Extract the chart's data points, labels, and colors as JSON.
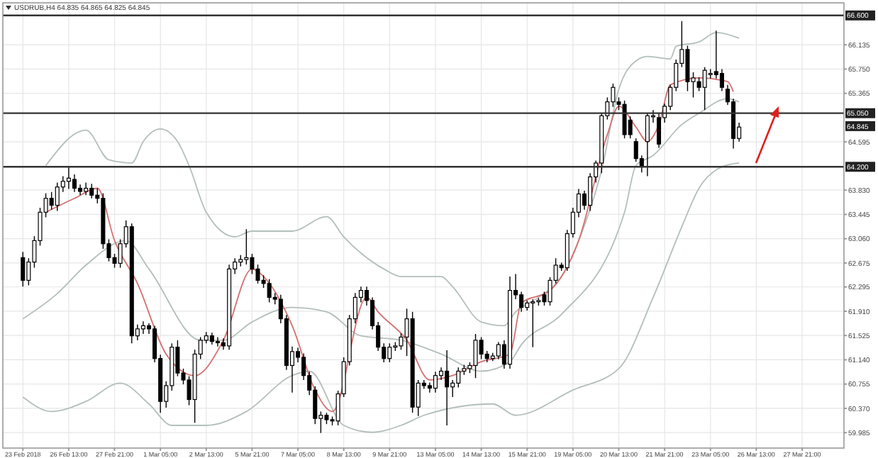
{
  "chart_data": {
    "type": "candlestick",
    "title": "USDRUB,H4 64.835 64.865 64.825 64.845",
    "categories": [
      "23 Feb 2018",
      null,
      null,
      null,
      null,
      null,
      null,
      null,
      "26 Feb 13:00",
      null,
      null,
      null,
      null,
      null,
      null,
      null,
      "27 Feb 21:00",
      null,
      null,
      null,
      null,
      null,
      null,
      null,
      "1 Mar 05:00",
      null,
      null,
      null,
      null,
      null,
      null,
      null,
      "2 Mar 13:00",
      null,
      null,
      null,
      null,
      null,
      null,
      null,
      "5 Mar 21:00",
      null,
      null,
      null,
      null,
      null,
      null,
      null,
      "7 Mar 05:00",
      null,
      null,
      null,
      null,
      null,
      null,
      null,
      "8 Mar 13:00",
      null,
      null,
      null,
      null,
      null,
      null,
      null,
      "9 Mar 21:00",
      null,
      null,
      null,
      null,
      null,
      null,
      null,
      "13 Mar 05:00",
      null,
      null,
      null,
      null,
      null,
      null,
      null,
      "14 Mar 13:00",
      null,
      null,
      null,
      null,
      null,
      null,
      null,
      "15 Mar 21:00",
      null,
      null,
      null,
      null,
      null,
      null,
      null,
      "19 Mar 05:00",
      null,
      null,
      null,
      null,
      null,
      null,
      null,
      "20 Mar 13:00",
      null,
      null,
      null,
      null,
      null,
      null,
      null,
      "21 Mar 21:00",
      null,
      null,
      null,
      null,
      null,
      null,
      null,
      "23 Mar 05:00",
      null,
      null,
      null,
      null,
      null,
      null,
      null,
      "26 Mar 13:00",
      null,
      null,
      null,
      null,
      null,
      null,
      null,
      "27 Mar 21:00",
      null,
      null,
      null,
      null,
      null,
      null,
      null
    ],
    "ohlc": [
      [
        62.76,
        62.85,
        62.3,
        62.4
      ],
      [
        62.4,
        62.75,
        62.32,
        62.69
      ],
      [
        62.69,
        63.1,
        62.6,
        63.03
      ],
      [
        63.03,
        63.55,
        62.95,
        63.48
      ],
      [
        63.48,
        63.78,
        63.4,
        63.7
      ],
      [
        63.7,
        63.8,
        63.52,
        63.59
      ],
      [
        63.59,
        63.95,
        63.5,
        63.88
      ],
      [
        63.88,
        64.05,
        63.8,
        63.97
      ],
      [
        63.97,
        64.2,
        63.85,
        64.02
      ],
      [
        64.0,
        64.08,
        63.8,
        63.86
      ],
      [
        63.86,
        63.92,
        63.75,
        63.81
      ],
      [
        63.81,
        63.95,
        63.75,
        63.86
      ],
      [
        63.86,
        63.93,
        63.7,
        63.75
      ],
      [
        63.75,
        63.86,
        63.62,
        63.7
      ],
      [
        63.7,
        63.78,
        62.9,
        62.98
      ],
      [
        62.98,
        63.05,
        62.7,
        62.76
      ],
      [
        62.76,
        62.82,
        62.6,
        62.67
      ],
      [
        62.67,
        63.05,
        62.6,
        62.98
      ],
      [
        62.98,
        63.35,
        62.92,
        63.25
      ],
      [
        63.25,
        63.3,
        61.4,
        61.52
      ],
      [
        61.52,
        61.7,
        61.45,
        61.63
      ],
      [
        61.63,
        61.75,
        61.55,
        61.68
      ],
      [
        61.68,
        61.72,
        61.55,
        61.63
      ],
      [
        61.63,
        61.68,
        61.1,
        61.16
      ],
      [
        61.16,
        61.22,
        60.3,
        60.48
      ],
      [
        60.48,
        60.8,
        60.38,
        60.73
      ],
      [
        60.73,
        61.4,
        60.65,
        61.34
      ],
      [
        61.34,
        61.45,
        60.88,
        60.93
      ],
      [
        60.93,
        61.0,
        60.75,
        60.82
      ],
      [
        60.82,
        60.88,
        60.42,
        60.51
      ],
      [
        60.51,
        61.3,
        60.14,
        61.23
      ],
      [
        61.23,
        61.5,
        61.15,
        61.45
      ],
      [
        61.45,
        61.58,
        61.4,
        61.52
      ],
      [
        61.52,
        61.57,
        61.38,
        61.43
      ],
      [
        61.43,
        61.5,
        61.35,
        61.41
      ],
      [
        61.41,
        61.48,
        61.3,
        61.36
      ],
      [
        61.36,
        62.65,
        61.3,
        62.58
      ],
      [
        62.58,
        62.75,
        62.5,
        62.69
      ],
      [
        62.69,
        62.8,
        62.62,
        62.73
      ],
      [
        62.73,
        63.21,
        62.65,
        62.76
      ],
      [
        62.76,
        62.82,
        62.5,
        62.58
      ],
      [
        62.58,
        62.65,
        62.35,
        62.4
      ],
      [
        62.4,
        62.48,
        62.28,
        62.35
      ],
      [
        62.35,
        62.42,
        62.05,
        62.13
      ],
      [
        62.13,
        62.2,
        62.02,
        62.1
      ],
      [
        62.1,
        62.17,
        61.72,
        61.79
      ],
      [
        61.79,
        61.85,
        60.98,
        61.05
      ],
      [
        61.05,
        61.35,
        60.62,
        61.27
      ],
      [
        61.27,
        61.33,
        61.1,
        61.18
      ],
      [
        61.18,
        61.24,
        60.82,
        60.89
      ],
      [
        60.89,
        60.95,
        60.58,
        60.66
      ],
      [
        60.66,
        60.72,
        60.12,
        60.21
      ],
      [
        60.21,
        60.32,
        59.98,
        60.26
      ],
      [
        60.26,
        60.3,
        60.12,
        60.19
      ],
      [
        60.19,
        60.24,
        60.1,
        60.17
      ],
      [
        60.17,
        60.65,
        60.1,
        60.6
      ],
      [
        60.6,
        61.18,
        60.55,
        61.11
      ],
      [
        61.11,
        61.85,
        61.05,
        61.79
      ],
      [
        61.79,
        62.2,
        61.72,
        62.13
      ],
      [
        62.13,
        62.3,
        62.05,
        62.24
      ],
      [
        62.24,
        62.3,
        62.0,
        62.08
      ],
      [
        62.08,
        62.13,
        61.62,
        61.68
      ],
      [
        61.68,
        61.74,
        61.28,
        61.34
      ],
      [
        61.34,
        61.4,
        61.1,
        61.16
      ],
      [
        61.16,
        61.4,
        61.1,
        61.34
      ],
      [
        61.34,
        61.42,
        61.28,
        61.36
      ],
      [
        61.36,
        61.56,
        61.3,
        61.5
      ],
      [
        61.5,
        61.95,
        61.2,
        61.79
      ],
      [
        61.79,
        61.9,
        60.3,
        60.39
      ],
      [
        60.39,
        60.82,
        60.25,
        60.77
      ],
      [
        60.77,
        60.82,
        60.68,
        60.73
      ],
      [
        60.73,
        60.78,
        60.62,
        60.69
      ],
      [
        60.69,
        60.95,
        60.62,
        60.89
      ],
      [
        60.89,
        61.02,
        60.82,
        60.96
      ],
      [
        60.96,
        61.29,
        60.1,
        60.71
      ],
      [
        60.71,
        60.82,
        60.55,
        60.77
      ],
      [
        60.77,
        61.02,
        60.7,
        60.96
      ],
      [
        60.96,
        61.06,
        60.9,
        61.0
      ],
      [
        61.0,
        61.1,
        60.93,
        61.05
      ],
      [
        61.05,
        61.55,
        60.85,
        61.45
      ],
      [
        61.45,
        61.5,
        61.15,
        61.23
      ],
      [
        61.23,
        61.28,
        61.1,
        61.16
      ],
      [
        61.16,
        61.25,
        61.12,
        61.2
      ],
      [
        61.2,
        61.42,
        61.15,
        61.38
      ],
      [
        61.38,
        61.45,
        61.0,
        61.07
      ],
      [
        61.07,
        62.46,
        61.0,
        62.24
      ],
      [
        62.24,
        62.5,
        62.1,
        62.17
      ],
      [
        62.17,
        62.22,
        61.9,
        61.97
      ],
      [
        61.97,
        62.08,
        61.92,
        62.04
      ],
      [
        62.04,
        62.1,
        61.34,
        62.06
      ],
      [
        62.06,
        62.12,
        62.0,
        62.08
      ],
      [
        62.17,
        62.22,
        62.0,
        62.06
      ],
      [
        62.06,
        62.45,
        62.0,
        62.4
      ],
      [
        62.4,
        62.75,
        62.35,
        62.64
      ],
      [
        62.64,
        62.68,
        62.55,
        62.6
      ],
      [
        62.6,
        63.2,
        62.55,
        63.14
      ],
      [
        63.14,
        63.55,
        63.08,
        63.48
      ],
      [
        63.48,
        63.85,
        63.4,
        63.77
      ],
      [
        63.77,
        63.82,
        63.52,
        63.59
      ],
      [
        63.59,
        64.1,
        63.5,
        64.04
      ],
      [
        64.04,
        64.3,
        63.95,
        64.26
      ],
      [
        64.26,
        65.05,
        64.1,
        65.01
      ],
      [
        65.01,
        65.3,
        64.95,
        65.23
      ],
      [
        65.23,
        65.52,
        65.15,
        65.46
      ],
      [
        65.23,
        65.3,
        65.1,
        65.19
      ],
      [
        65.19,
        65.25,
        64.65,
        64.71
      ],
      [
        64.94,
        65.0,
        64.65,
        64.71
      ],
      [
        64.6,
        64.65,
        64.28,
        64.33
      ],
      [
        64.33,
        64.38,
        64.11,
        64.2
      ],
      [
        64.6,
        65.05,
        64.05,
        65.01
      ],
      [
        65.01,
        65.1,
        64.9,
        65.01
      ],
      [
        64.98,
        65.05,
        64.5,
        64.56
      ],
      [
        64.98,
        65.2,
        64.9,
        65.16
      ],
      [
        65.16,
        65.5,
        65.1,
        65.46
      ],
      [
        65.46,
        65.9,
        65.4,
        65.84
      ],
      [
        65.84,
        66.51,
        65.78,
        66.06
      ],
      [
        66.06,
        66.12,
        65.4,
        65.55
      ],
      [
        65.55,
        65.7,
        65.3,
        65.61
      ],
      [
        65.55,
        65.62,
        65.4,
        65.46
      ],
      [
        65.46,
        65.78,
        65.1,
        65.73
      ],
      [
        65.68,
        65.75,
        65.6,
        65.68
      ],
      [
        65.71,
        66.36,
        65.6,
        65.66
      ],
      [
        65.68,
        65.75,
        65.4,
        65.46
      ],
      [
        65.43,
        65.5,
        65.18,
        65.23
      ],
      [
        65.23,
        65.28,
        64.49,
        64.65
      ],
      [
        64.65,
        64.9,
        64.6,
        64.83
      ],
      null,
      null,
      null,
      null,
      null,
      null,
      null,
      null,
      null,
      null,
      null,
      null,
      null,
      null,
      null,
      null,
      null,
      null
    ],
    "series": [
      {
        "type": "line",
        "color": "#b3bfba",
        "values": [
          null,
          null,
          null,
          null,
          64.22,
          null,
          null,
          null,
          null,
          null,
          null,
          64.78,
          null,
          null,
          null,
          64.31,
          null,
          null,
          null,
          64.26,
          null,
          64.6,
          null,
          null,
          64.8,
          null,
          null,
          64.6,
          null,
          64.22,
          null,
          null,
          63.48,
          null,
          null,
          null,
          null,
          63.09,
          null,
          null,
          63.18,
          null,
          null,
          null,
          null,
          null,
          null,
          63.18,
          null,
          null,
          null,
          null,
          null,
          63.41,
          null,
          null,
          63.09,
          null,
          null,
          null,
          null,
          null,
          null,
          62.58,
          null,
          null,
          62.46,
          null,
          null,
          null,
          null,
          null,
          null,
          62.46,
          null,
          62.3,
          null,
          null,
          null,
          null,
          61.74,
          null,
          null,
          null,
          61.68,
          null,
          61.9,
          null,
          null,
          null,
          62.13,
          null,
          null,
          null,
          62.46,
          null,
          null,
          63.03,
          null,
          null,
          null,
          64.15,
          null,
          null,
          65.43,
          null,
          null,
          65.88,
          null,
          65.95,
          null,
          null,
          null,
          65.91,
          66.11,
          null,
          null,
          null,
          66.18,
          null,
          null,
          66.33,
          null,
          null,
          null,
          66.24,
          null,
          null,
          null,
          null,
          null,
          null,
          null,
          null,
          null,
          null,
          null,
          null,
          null,
          null,
          null,
          null,
          null,
          null
        ]
      },
      {
        "type": "line",
        "color": "#b3bfba",
        "values": [
          61.79,
          null,
          null,
          null,
          null,
          null,
          62.19,
          null,
          null,
          null,
          null,
          62.64,
          null,
          null,
          null,
          null,
          null,
          null,
          63.03,
          null,
          null,
          null,
          62.58,
          null,
          null,
          null,
          null,
          null,
          null,
          null,
          null,
          61.45,
          null,
          null,
          null,
          61.45,
          null,
          null,
          null,
          null,
          61.74,
          null,
          null,
          null,
          null,
          null,
          null,
          61.97,
          null,
          null,
          null,
          null,
          null,
          61.9,
          null,
          null,
          null,
          null,
          null,
          61.52,
          null,
          null,
          null,
          null,
          null,
          null,
          61.45,
          null,
          null,
          null,
          null,
          null,
          null,
          61.23,
          null,
          null,
          null,
          null,
          null,
          null,
          60.96,
          null,
          null,
          null,
          null,
          61.11,
          null,
          61.38,
          null,
          null,
          null,
          null,
          null,
          null,
          61.86,
          null,
          null,
          null,
          null,
          null,
          null,
          null,
          null,
          null,
          null,
          63.48,
          null,
          64.22,
          null,
          null,
          64.38,
          null,
          null,
          null,
          null,
          64.87,
          null,
          null,
          65.05,
          null,
          null,
          null,
          null,
          65.28,
          null,
          65.23,
          null,
          null,
          null,
          null,
          null,
          null,
          null,
          null,
          null,
          null,
          null,
          null,
          null,
          null,
          null,
          null,
          null,
          null
        ]
      },
      {
        "type": "line",
        "color": "#b3bfba",
        "values": [
          60.55,
          null,
          null,
          null,
          null,
          60.32,
          null,
          null,
          null,
          null,
          null,
          60.48,
          null,
          null,
          null,
          null,
          null,
          60.77,
          null,
          null,
          null,
          null,
          60.44,
          null,
          null,
          null,
          60.1,
          null,
          null,
          null,
          null,
          null,
          60.1,
          null,
          null,
          null,
          null,
          null,
          null,
          60.32,
          null,
          null,
          null,
          null,
          null,
          null,
          null,
          60.89,
          null,
          null,
          60.96,
          null,
          null,
          null,
          null,
          null,
          60.1,
          null,
          null,
          null,
          null,
          59.99,
          null,
          null,
          null,
          null,
          60.1,
          null,
          null,
          null,
          60.26,
          null,
          null,
          null,
          null,
          null,
          null,
          null,
          null,
          null,
          null,
          null,
          60.44,
          null,
          null,
          null,
          60.26,
          null,
          null,
          null,
          null,
          null,
          null,
          null,
          null,
          null,
          60.66,
          null,
          null,
          null,
          null,
          null,
          null,
          null,
          61.0,
          null,
          null,
          null,
          null,
          null,
          62.13,
          null,
          null,
          null,
          null,
          63.25,
          null,
          null,
          63.86,
          null,
          null,
          null,
          64.2,
          null,
          null,
          64.26,
          null,
          null,
          null,
          null,
          null,
          null,
          null,
          null,
          null,
          null,
          null,
          null,
          null,
          null,
          null,
          null,
          null,
          null
        ]
      },
      {
        "type": "line",
        "color": "#d47070",
        "values": [
          null,
          null,
          null,
          null,
          63.48,
          null,
          null,
          null,
          null,
          63.7,
          null,
          null,
          null,
          63.86,
          null,
          null,
          63.03,
          null,
          null,
          null,
          62.35,
          null,
          null,
          null,
          null,
          61.23,
          null,
          null,
          null,
          null,
          60.89,
          null,
          null,
          null,
          null,
          61.45,
          null,
          null,
          null,
          null,
          62.58,
          null,
          62.46,
          null,
          null,
          null,
          null,
          61.68,
          null,
          null,
          null,
          60.66,
          null,
          null,
          60.32,
          null,
          null,
          null,
          null,
          null,
          62.13,
          null,
          61.9,
          null,
          null,
          null,
          null,
          61.45,
          null,
          null,
          null,
          60.82,
          null,
          null,
          null,
          60.89,
          null,
          null,
          null,
          null,
          61.11,
          null,
          null,
          null,
          null,
          61.23,
          null,
          62.04,
          null,
          null,
          null,
          null,
          62.24,
          null,
          null,
          null,
          null,
          63.03,
          null,
          null,
          null,
          null,
          64.71,
          null,
          65.16,
          null,
          null,
          64.83,
          null,
          64.6,
          null,
          64.87,
          null,
          65.5,
          null,
          null,
          null,
          null,
          65.61,
          null,
          null,
          null,
          null,
          65.55,
          65.39,
          null,
          null,
          null,
          null,
          null,
          null,
          null,
          null,
          null,
          null,
          null,
          null,
          null,
          null,
          null,
          null,
          null,
          null,
          null
        ]
      }
    ],
    "ylim": [
      59.74,
      66.8
    ],
    "yticks": [
      66.135,
      {
        "value": 65.75,
        "label": "65.750"
      },
      65.365,
      64.595,
      {
        "value": 63.83,
        "label": "63.830"
      },
      63.445,
      {
        "value": 63.06,
        "label": "63.060"
      },
      62.675,
      62.295,
      {
        "value": 61.91,
        "label": "61.910"
      },
      61.525,
      {
        "value": 61.14,
        "label": "61.140"
      },
      60.755,
      {
        "value": 60.37,
        "label": "60.370"
      },
      59.985
    ],
    "grid": true,
    "ref_lines": [
      {
        "axis": "y",
        "value": 66.6,
        "label": "66.600",
        "color": "#333333"
      },
      {
        "axis": "y",
        "value": 65.05,
        "label": "65.050",
        "color": "#333333"
      },
      {
        "axis": "y",
        "value": 64.2,
        "label": "64.200",
        "color": "#333333"
      }
    ],
    "annotations": [
      {
        "text": "64.845",
        "y": 64.845
      }
    ]
  }
}
